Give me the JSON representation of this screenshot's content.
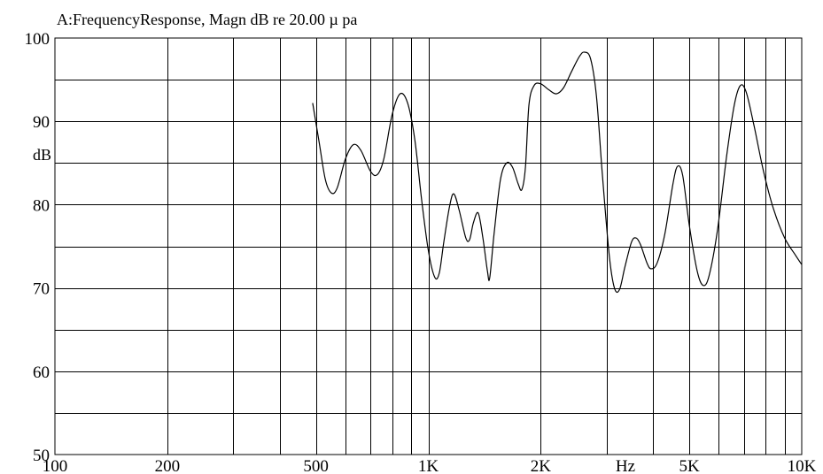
{
  "chart_data": {
    "type": "line",
    "title": "A:FrequencyResponse,  Magn dB re 20.00 µ pa",
    "xlabel": "Hz",
    "ylabel": "dB",
    "x_scale": "log",
    "xlim": [
      100,
      10000
    ],
    "ylim": [
      50,
      100
    ],
    "x_ticks": [
      {
        "value": 100,
        "label": "100"
      },
      {
        "value": 200,
        "label": "200"
      },
      {
        "value": 500,
        "label": "500"
      },
      {
        "value": 1000,
        "label": "1K"
      },
      {
        "value": 2000,
        "label": "2K"
      },
      {
        "value": 5000,
        "label": "5K"
      },
      {
        "value": 10000,
        "label": "10K"
      }
    ],
    "y_ticks": [
      {
        "value": 50,
        "label": "50"
      },
      {
        "value": 60,
        "label": "60"
      },
      {
        "value": 70,
        "label": "70"
      },
      {
        "value": 80,
        "label": "80"
      },
      {
        "value": 90,
        "label": "90"
      },
      {
        "value": 100,
        "label": "100"
      }
    ],
    "grid": true,
    "series": [
      {
        "points": [
          [
            490,
            92.2
          ],
          [
            510,
            87.5
          ],
          [
            530,
            83.0
          ],
          [
            550,
            81.4
          ],
          [
            570,
            82.0
          ],
          [
            600,
            85.5
          ],
          [
            630,
            87.2
          ],
          [
            660,
            86.5
          ],
          [
            700,
            84.0
          ],
          [
            730,
            83.6
          ],
          [
            760,
            85.5
          ],
          [
            800,
            90.8
          ],
          [
            840,
            93.3
          ],
          [
            880,
            92.2
          ],
          [
            920,
            87.8
          ],
          [
            960,
            80.5
          ],
          [
            1000,
            74.5
          ],
          [
            1040,
            71.3
          ],
          [
            1070,
            71.8
          ],
          [
            1100,
            75.5
          ],
          [
            1140,
            79.8
          ],
          [
            1170,
            81.3
          ],
          [
            1210,
            79.3
          ],
          [
            1260,
            76.0
          ],
          [
            1290,
            75.8
          ],
          [
            1320,
            77.8
          ],
          [
            1360,
            79.0
          ],
          [
            1400,
            76.0
          ],
          [
            1440,
            72.0
          ],
          [
            1460,
            71.2
          ],
          [
            1500,
            76.5
          ],
          [
            1560,
            83.0
          ],
          [
            1620,
            85.0
          ],
          [
            1680,
            84.5
          ],
          [
            1740,
            82.5
          ],
          [
            1780,
            81.8
          ],
          [
            1820,
            84.5
          ],
          [
            1860,
            92.0
          ],
          [
            1920,
            94.3
          ],
          [
            2000,
            94.5
          ],
          [
            2100,
            93.8
          ],
          [
            2200,
            93.3
          ],
          [
            2300,
            94.0
          ],
          [
            2420,
            96.0
          ],
          [
            2540,
            97.8
          ],
          [
            2620,
            98.3
          ],
          [
            2720,
            97.5
          ],
          [
            2820,
            93.0
          ],
          [
            2920,
            84.0
          ],
          [
            3050,
            74.0
          ],
          [
            3150,
            70.0
          ],
          [
            3250,
            69.8
          ],
          [
            3360,
            72.5
          ],
          [
            3500,
            75.5
          ],
          [
            3600,
            76.0
          ],
          [
            3700,
            75.2
          ],
          [
            3850,
            73.0
          ],
          [
            3950,
            72.3
          ],
          [
            4100,
            73.0
          ],
          [
            4300,
            76.5
          ],
          [
            4520,
            82.5
          ],
          [
            4650,
            84.6
          ],
          [
            4800,
            83.5
          ],
          [
            5000,
            77.5
          ],
          [
            5250,
            72.0
          ],
          [
            5450,
            70.3
          ],
          [
            5650,
            71.5
          ],
          [
            5950,
            77.0
          ],
          [
            6300,
            86.0
          ],
          [
            6600,
            92.0
          ],
          [
            6850,
            94.3
          ],
          [
            7100,
            93.5
          ],
          [
            7450,
            89.5
          ],
          [
            7900,
            84.0
          ],
          [
            8400,
            79.5
          ],
          [
            9000,
            76.0
          ],
          [
            9600,
            74.0
          ],
          [
            10000,
            72.8
          ]
        ]
      }
    ]
  }
}
